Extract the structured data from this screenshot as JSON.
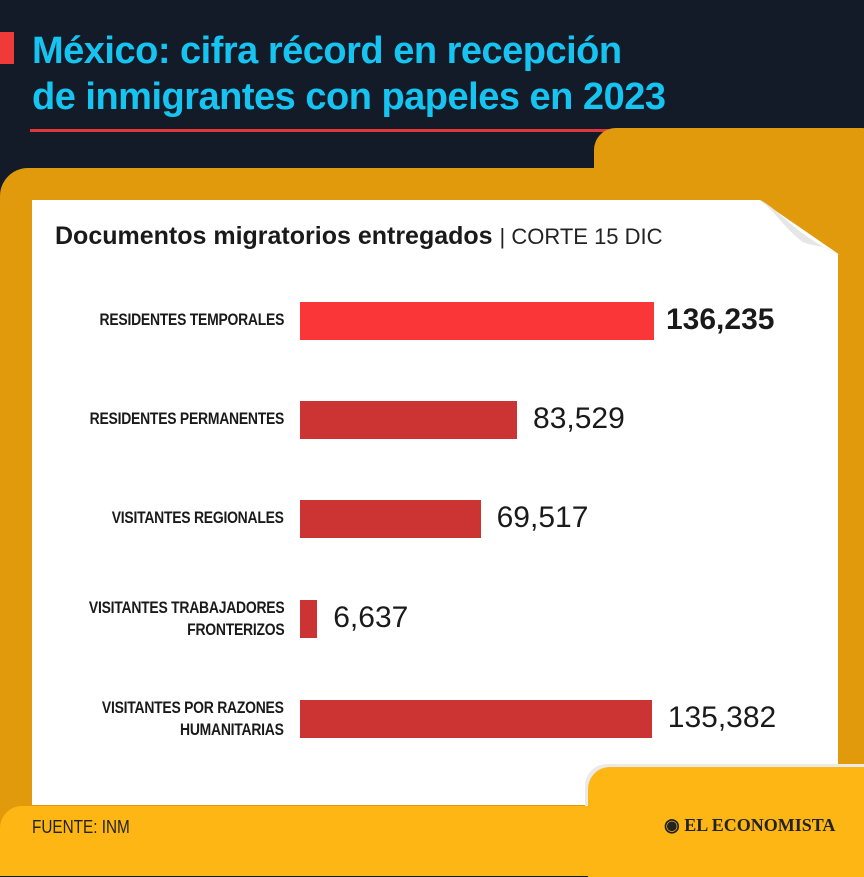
{
  "header": {
    "title_line1": "México: cifra récord en recepción",
    "title_line2": "de inmigrantes con papeles en 2023"
  },
  "chart_data": {
    "type": "bar",
    "orientation": "horizontal",
    "title": "Documentos migratorios entregados",
    "subtitle": "| CORTE 15 DIC",
    "categories": [
      "RESIDENTES TEMPORALES",
      "RESIDENTES PERMANENTES",
      "VISITANTES REGIONALES",
      "VISITANTES TRABAJADORES FRONTERIZOS",
      "VISITANTES POR RAZONES HUMANITARIAS"
    ],
    "category_lines": [
      [
        "RESIDENTES TEMPORALES"
      ],
      [
        "RESIDENTES PERMANENTES"
      ],
      [
        "VISITANTES REGIONALES"
      ],
      [
        "VISITANTES TRABAJADORES",
        "FRONTERIZOS"
      ],
      [
        "VISITANTES POR RAZONES",
        "HUMANITARIAS"
      ]
    ],
    "values": [
      136235,
      83529,
      69517,
      6637,
      135382
    ],
    "value_labels": [
      "136,235",
      "83,529",
      "69,517",
      "6,637",
      "135,382"
    ],
    "colors": [
      "#fb3639",
      "#cc3434",
      "#cc3434",
      "#cc3434",
      "#cc3434"
    ],
    "highlight_index": 0
  },
  "footer": {
    "source": "FUENTE: INM",
    "logo": "EL ECONOMISTA"
  }
}
